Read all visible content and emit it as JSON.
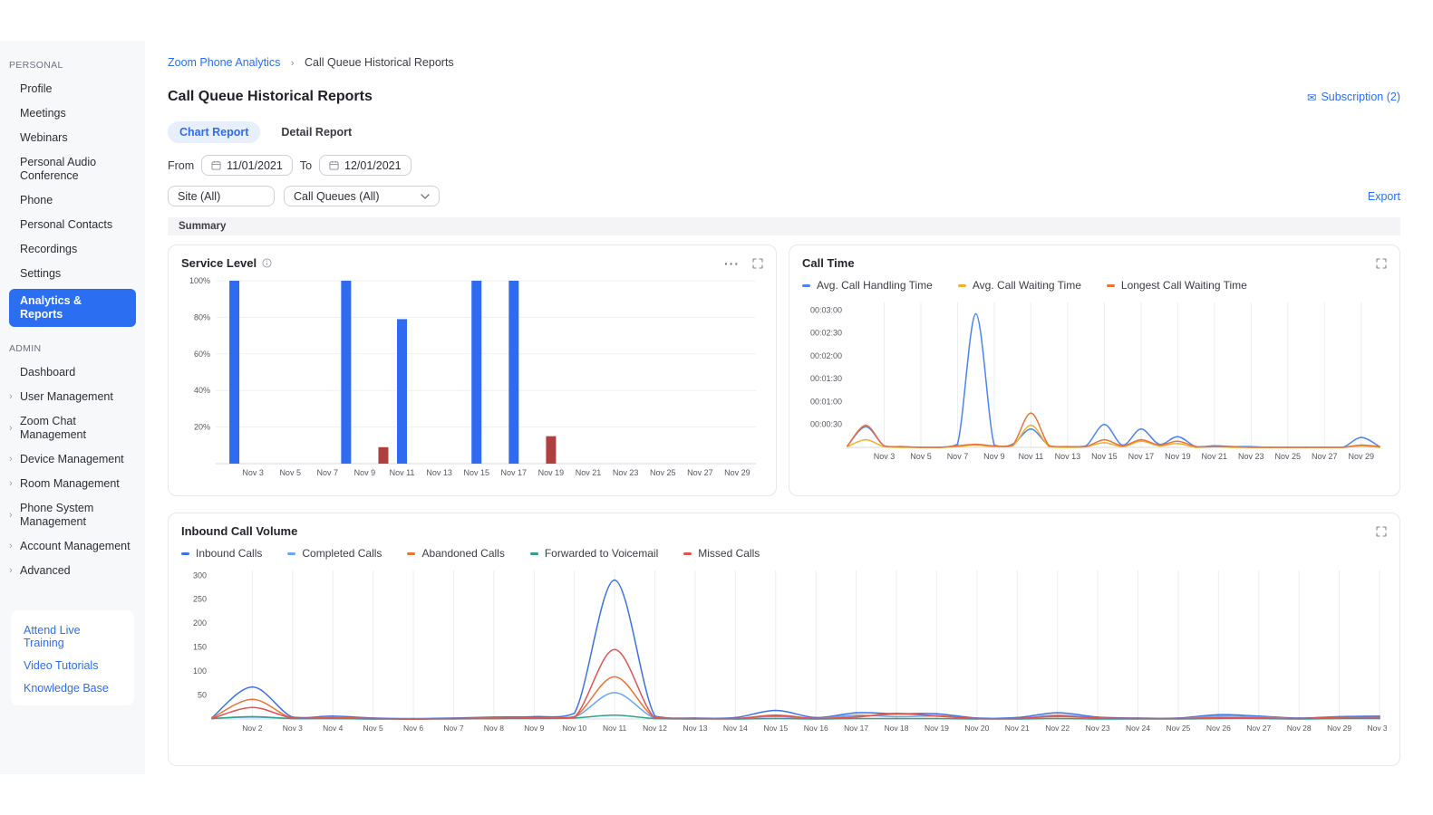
{
  "sidebar": {
    "sections": [
      {
        "label": "PERSONAL",
        "items": [
          {
            "label": "Profile"
          },
          {
            "label": "Meetings"
          },
          {
            "label": "Webinars"
          },
          {
            "label": "Personal Audio Conference"
          },
          {
            "label": "Phone"
          },
          {
            "label": "Personal Contacts"
          },
          {
            "label": "Recordings"
          },
          {
            "label": "Settings"
          },
          {
            "label": "Analytics & Reports",
            "active": true
          }
        ]
      },
      {
        "label": "ADMIN",
        "items": [
          {
            "label": "Dashboard"
          },
          {
            "label": "User Management",
            "expandable": true
          },
          {
            "label": "Zoom Chat Management",
            "expandable": true
          },
          {
            "label": "Device Management",
            "expandable": true
          },
          {
            "label": "Room Management",
            "expandable": true
          },
          {
            "label": "Phone System Management",
            "expandable": true
          },
          {
            "label": "Account Management",
            "expandable": true
          },
          {
            "label": "Advanced",
            "expandable": true
          }
        ]
      }
    ],
    "help_links": [
      {
        "label": "Attend Live Training"
      },
      {
        "label": "Video Tutorials"
      },
      {
        "label": "Knowledge Base"
      }
    ]
  },
  "breadcrumb": {
    "parent": "Zoom Phone Analytics",
    "separator": "›",
    "current": "Call Queue Historical Reports"
  },
  "header": {
    "title": "Call Queue Historical Reports",
    "subscription": "Subscription (2)",
    "summary": "Summary"
  },
  "tabs": {
    "chart_report": "Chart Report",
    "detail_report": "Detail Report"
  },
  "filters": {
    "from_label": "From",
    "from_value": "11/01/2021",
    "to_label": "To",
    "to_value": "12/01/2021",
    "site_value": "Site (All)",
    "queues_value": "Call Queues (All)",
    "export_label": "Export"
  },
  "colors": {
    "accent_blue": "#2c6ef2",
    "bar_blue": "#2e6bf0",
    "bar_red": "#b04040",
    "handling_blue": "#4b83f0",
    "waiting_yellow": "#efb02f",
    "longest_orange": "#e8743a",
    "inbound_blue": "#3b72e8",
    "completed_blue": "#6aa5f8",
    "abandoned_orange": "#e8743a",
    "voicemail_teal": "#33a08c",
    "missed_red": "#e05353"
  },
  "chart_data": [
    {
      "type": "bar",
      "title": "Service Level",
      "grid": "horizontal",
      "x_domain": [
        1,
        30
      ],
      "ymax": 100,
      "yticks": [
        {
          "v": 100,
          "label": "100%"
        },
        {
          "v": 80,
          "label": "80%"
        },
        {
          "v": 60,
          "label": "60%"
        },
        {
          "v": 40,
          "label": "40%"
        },
        {
          "v": 20,
          "label": "20%"
        }
      ],
      "xticks": [
        {
          "day": 3,
          "label": "Nov 3"
        },
        {
          "day": 5,
          "label": "Nov 5"
        },
        {
          "day": 7,
          "label": "Nov 7"
        },
        {
          "day": 9,
          "label": "Nov 9"
        },
        {
          "day": 11,
          "label": "Nov 11"
        },
        {
          "day": 13,
          "label": "Nov 13"
        },
        {
          "day": 15,
          "label": "Nov 15"
        },
        {
          "day": 17,
          "label": "Nov 17"
        },
        {
          "day": 19,
          "label": "Nov 19"
        },
        {
          "day": 21,
          "label": "Nov 21"
        },
        {
          "day": 23,
          "label": "Nov 23"
        },
        {
          "day": 25,
          "label": "Nov 25"
        },
        {
          "day": 27,
          "label": "Nov 27"
        },
        {
          "day": 29,
          "label": "Nov 29"
        }
      ],
      "bars": [
        {
          "day": 2,
          "value": 100,
          "color": "#2e6bf0"
        },
        {
          "day": 8,
          "value": 100,
          "color": "#2e6bf0"
        },
        {
          "day": 10,
          "value": 9,
          "color": "#b04040"
        },
        {
          "day": 11,
          "value": 79,
          "color": "#2e6bf0"
        },
        {
          "day": 15,
          "value": 100,
          "color": "#2e6bf0"
        },
        {
          "day": 17,
          "value": 100,
          "color": "#2e6bf0"
        },
        {
          "day": 19,
          "value": 15,
          "color": "#b04040"
        }
      ]
    },
    {
      "type": "line",
      "title": "Call Time",
      "grid": "vertical",
      "x_domain": [
        1,
        30
      ],
      "ymax": 190,
      "y_unit": "seconds",
      "yticks": [
        {
          "v": 180,
          "label": "00:03:00"
        },
        {
          "v": 150,
          "label": "00:02:30"
        },
        {
          "v": 120,
          "label": "00:02:00"
        },
        {
          "v": 90,
          "label": "00:01:30"
        },
        {
          "v": 60,
          "label": "00:01:00"
        },
        {
          "v": 30,
          "label": "00:00:30"
        }
      ],
      "xticks": [
        {
          "day": 3,
          "label": "Nov 3"
        },
        {
          "day": 5,
          "label": "Nov 5"
        },
        {
          "day": 7,
          "label": "Nov 7"
        },
        {
          "day": 9,
          "label": "Nov 9"
        },
        {
          "day": 11,
          "label": "Nov 11"
        },
        {
          "day": 13,
          "label": "Nov 13"
        },
        {
          "day": 15,
          "label": "Nov 15"
        },
        {
          "day": 17,
          "label": "Nov 17"
        },
        {
          "day": 19,
          "label": "Nov 19"
        },
        {
          "day": 21,
          "label": "Nov 21"
        },
        {
          "day": 23,
          "label": "Nov 23"
        },
        {
          "day": 25,
          "label": "Nov 25"
        },
        {
          "day": 27,
          "label": "Nov 27"
        },
        {
          "day": 29,
          "label": "Nov 29"
        }
      ],
      "series": [
        {
          "name": "Avg. Call Handling Time",
          "color": "#4b83f0",
          "values": [
            2,
            27,
            2,
            1,
            0,
            0,
            4,
            175,
            3,
            4,
            24,
            2,
            1,
            2,
            30,
            3,
            24,
            4,
            14,
            1,
            2,
            1,
            1,
            0,
            0,
            0,
            0,
            0,
            13,
            1
          ]
        },
        {
          "name": "Avg. Call Waiting Time",
          "color": "#efb02f",
          "values": [
            1,
            10,
            1,
            0,
            0,
            0,
            1,
            3,
            1,
            2,
            29,
            1,
            0,
            1,
            6,
            1,
            8,
            2,
            5,
            0,
            1,
            0,
            0,
            0,
            0,
            0,
            0,
            0,
            2,
            0
          ]
        },
        {
          "name": "Longest Call Waiting Time",
          "color": "#e8743a",
          "values": [
            2,
            29,
            2,
            1,
            0,
            0,
            2,
            4,
            2,
            3,
            45,
            2,
            1,
            1,
            10,
            2,
            10,
            3,
            8,
            1,
            1,
            1,
            0,
            0,
            0,
            0,
            0,
            0,
            3,
            1
          ]
        }
      ]
    },
    {
      "type": "line",
      "title": "Inbound Call Volume",
      "grid": "vertical",
      "x_domain": [
        1,
        30
      ],
      "ymax": 310,
      "yticks": [
        {
          "v": 300,
          "label": "300"
        },
        {
          "v": 250,
          "label": "250"
        },
        {
          "v": 200,
          "label": "200"
        },
        {
          "v": 150,
          "label": "150"
        },
        {
          "v": 100,
          "label": "100"
        },
        {
          "v": 50,
          "label": "50"
        }
      ],
      "xticks": [
        {
          "day": 2,
          "label": "Nov 2"
        },
        {
          "day": 3,
          "label": "Nov 3"
        },
        {
          "day": 4,
          "label": "Nov 4"
        },
        {
          "day": 5,
          "label": "Nov 5"
        },
        {
          "day": 6,
          "label": "Nov 6"
        },
        {
          "day": 7,
          "label": "Nov 7"
        },
        {
          "day": 8,
          "label": "Nov 8"
        },
        {
          "day": 9,
          "label": "Nov 9"
        },
        {
          "day": 10,
          "label": "Nov 10"
        },
        {
          "day": 11,
          "label": "Nov 11"
        },
        {
          "day": 12,
          "label": "Nov 12"
        },
        {
          "day": 13,
          "label": "Nov 13"
        },
        {
          "day": 14,
          "label": "Nov 14"
        },
        {
          "day": 15,
          "label": "Nov 15"
        },
        {
          "day": 16,
          "label": "Nov 16"
        },
        {
          "day": 17,
          "label": "Nov 17"
        },
        {
          "day": 18,
          "label": "Nov 18"
        },
        {
          "day": 19,
          "label": "Nov 19"
        },
        {
          "day": 20,
          "label": "Nov 20"
        },
        {
          "day": 21,
          "label": "Nov 21"
        },
        {
          "day": 22,
          "label": "Nov 22"
        },
        {
          "day": 23,
          "label": "Nov 23"
        },
        {
          "day": 24,
          "label": "Nov 24"
        },
        {
          "day": 25,
          "label": "Nov 25"
        },
        {
          "day": 26,
          "label": "Nov 26"
        },
        {
          "day": 27,
          "label": "Nov 27"
        },
        {
          "day": 28,
          "label": "Nov 28"
        },
        {
          "day": 29,
          "label": "Nov 29"
        },
        {
          "day": 30,
          "label": "Nov 30"
        }
      ],
      "series": [
        {
          "name": "Inbound Calls",
          "color": "#3b72e8",
          "values": [
            3,
            67,
            4,
            6,
            2,
            1,
            2,
            4,
            5,
            12,
            290,
            6,
            2,
            3,
            18,
            3,
            13,
            11,
            11,
            2,
            3,
            13,
            4,
            2,
            2,
            9,
            6,
            2,
            5,
            6
          ]
        },
        {
          "name": "Completed Calls",
          "color": "#6aa5f8",
          "values": [
            1,
            4,
            1,
            1,
            0,
            0,
            1,
            1,
            2,
            4,
            55,
            2,
            1,
            1,
            5,
            1,
            8,
            5,
            6,
            1,
            1,
            8,
            2,
            1,
            1,
            6,
            4,
            1,
            2,
            2
          ]
        },
        {
          "name": "Abandoned Calls",
          "color": "#e8743a",
          "values": [
            2,
            41,
            2,
            3,
            1,
            0,
            1,
            2,
            2,
            5,
            88,
            3,
            1,
            1,
            6,
            1,
            5,
            10,
            7,
            1,
            1,
            5,
            2,
            1,
            1,
            3,
            2,
            1,
            3,
            5
          ]
        },
        {
          "name": "Forwarded to Voicemail",
          "color": "#33a08c",
          "values": [
            1,
            5,
            1,
            1,
            0,
            0,
            0,
            1,
            1,
            2,
            8,
            1,
            0,
            0,
            1,
            0,
            1,
            1,
            1,
            0,
            0,
            1,
            0,
            0,
            0,
            1,
            1,
            0,
            1,
            1
          ]
        },
        {
          "name": "Missed Calls",
          "color": "#e05353",
          "values": [
            1,
            24,
            2,
            2,
            1,
            0,
            1,
            1,
            2,
            4,
            145,
            2,
            1,
            1,
            8,
            1,
            4,
            12,
            6,
            1,
            1,
            6,
            2,
            1,
            1,
            2,
            2,
            1,
            4,
            4
          ]
        }
      ]
    }
  ]
}
